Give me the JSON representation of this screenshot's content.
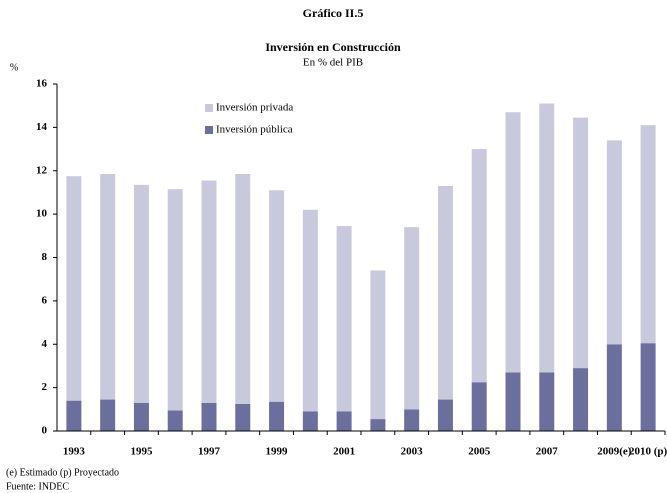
{
  "chart_data": {
    "type": "stacked_bar",
    "supertitle": "Gráfico II.5",
    "title": "Inversión en Construcción",
    "subtitle": "En % del PIB",
    "y_label": "%",
    "categories": [
      "1993",
      null,
      "1995",
      null,
      "1997",
      null,
      "1999",
      null,
      "2001",
      null,
      "2003",
      null,
      "2005",
      null,
      "2007",
      null,
      "2009(e)",
      "2010 (p)"
    ],
    "series": [
      {
        "name": "Inversión pública",
        "color": "#6b6f9e",
        "values": [
          1.4,
          1.45,
          1.3,
          0.95,
          1.3,
          1.25,
          1.35,
          0.9,
          0.9,
          0.55,
          1.0,
          1.45,
          2.25,
          2.7,
          2.7,
          2.9,
          4.0,
          4.05
        ]
      },
      {
        "name": "Inversión privada",
        "color": "#c9c9dd",
        "values": [
          10.35,
          10.4,
          10.05,
          10.2,
          10.25,
          10.6,
          9.75,
          9.3,
          8.55,
          6.85,
          8.4,
          9.85,
          10.75,
          12.0,
          12.4,
          11.55,
          9.4,
          10.05
        ]
      }
    ],
    "ylim": [
      0,
      16
    ],
    "yticks": [
      0,
      2,
      4,
      6,
      8,
      10,
      12,
      14,
      16
    ],
    "grid": false,
    "legend": "top-left",
    "notes": [
      "(e) Estimado (p) Proyectado",
      "Fuente: INDEC"
    ]
  }
}
